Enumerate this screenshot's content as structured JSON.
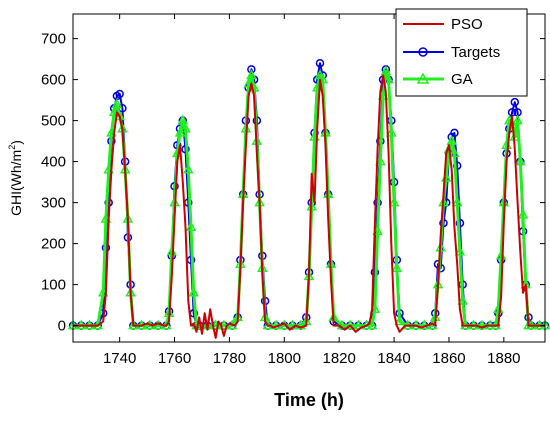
{
  "chart_data": {
    "type": "line",
    "xlabel": "Time (h)",
    "ylabel": "GHI(Wh/m",
    "ylabel_sup": "2",
    "ylabel_close": ")",
    "xlim": [
      1723,
      1895
    ],
    "ylim": [
      -40,
      760
    ],
    "xticks": [
      1740,
      1760,
      1780,
      1800,
      1820,
      1840,
      1860,
      1880
    ],
    "yticks": [
      0,
      100,
      200,
      300,
      400,
      500,
      600,
      700
    ],
    "grid": false,
    "legend_position": "top-right",
    "series": [
      {
        "name": "PSO",
        "color": "#cc0000",
        "marker": "none",
        "x": [
          1723,
          1730,
          1732,
          1734,
          1735,
          1736,
          1737,
          1738,
          1739,
          1740,
          1741,
          1742,
          1743,
          1744,
          1745,
          1746,
          1748,
          1750,
          1752,
          1754,
          1756,
          1757,
          1758,
          1759,
          1760,
          1761,
          1762,
          1763,
          1764,
          1765,
          1766,
          1767,
          1768,
          1769,
          1770,
          1771,
          1772,
          1773,
          1774,
          1775,
          1776,
          1777,
          1778,
          1779,
          1780,
          1782,
          1783,
          1784,
          1785,
          1786,
          1787,
          1788,
          1789,
          1790,
          1791,
          1792,
          1793,
          1794,
          1795,
          1796,
          1798,
          1800,
          1802,
          1804,
          1806,
          1808,
          1809,
          1810,
          1811,
          1812,
          1813,
          1814,
          1815,
          1816,
          1817,
          1818,
          1820,
          1822,
          1824,
          1826,
          1828,
          1830,
          1831,
          1832,
          1833,
          1834,
          1835,
          1836,
          1837,
          1838,
          1839,
          1840,
          1841,
          1842,
          1844,
          1846,
          1848,
          1850,
          1852,
          1854,
          1855,
          1856,
          1857,
          1858,
          1859,
          1860,
          1861,
          1862,
          1863,
          1864,
          1865,
          1866,
          1868,
          1870,
          1872,
          1874,
          1876,
          1878,
          1879,
          1880,
          1881,
          1882,
          1883,
          1884,
          1885,
          1886,
          1887,
          1888,
          1889,
          1890,
          1892,
          1895
        ],
        "y": [
          0,
          0,
          0,
          10,
          80,
          260,
          380,
          470,
          520,
          510,
          480,
          380,
          260,
          80,
          0,
          0,
          0,
          5,
          0,
          5,
          0,
          0,
          10,
          120,
          260,
          400,
          440,
          350,
          240,
          60,
          0,
          5,
          -15,
          20,
          -20,
          30,
          -10,
          40,
          0,
          -30,
          10,
          0,
          -25,
          0,
          5,
          0,
          10,
          140,
          300,
          440,
          560,
          590,
          560,
          420,
          300,
          130,
          10,
          0,
          0,
          -5,
          0,
          5,
          -10,
          0,
          -5,
          0,
          130,
          370,
          300,
          480,
          600,
          560,
          440,
          260,
          110,
          0,
          0,
          -10,
          0,
          -15,
          -5,
          0,
          5,
          40,
          250,
          430,
          570,
          610,
          570,
          420,
          200,
          30,
          0,
          -15,
          0,
          0,
          0,
          -5,
          0,
          5,
          0,
          100,
          220,
          320,
          420,
          440,
          380,
          240,
          150,
          40,
          0,
          0,
          0,
          0,
          -5,
          0,
          0,
          0,
          70,
          250,
          400,
          470,
          510,
          430,
          300,
          180,
          80,
          100,
          0,
          0,
          0,
          0
        ]
      },
      {
        "name": "Targets",
        "color": "#0000dd",
        "marker": "circle",
        "x": [
          1723,
          1726,
          1729,
          1732,
          1734,
          1735,
          1736,
          1737,
          1738,
          1739,
          1740,
          1741,
          1742,
          1743,
          1744,
          1745,
          1748,
          1751,
          1754,
          1757,
          1758,
          1759,
          1760,
          1761,
          1762,
          1763,
          1764,
          1765,
          1766,
          1767,
          1768,
          1769,
          1772,
          1775,
          1778,
          1781,
          1783,
          1784,
          1785,
          1786,
          1787,
          1788,
          1789,
          1790,
          1791,
          1792,
          1793,
          1794,
          1797,
          1800,
          1803,
          1806,
          1808,
          1809,
          1810,
          1811,
          1812,
          1813,
          1814,
          1815,
          1816,
          1817,
          1818,
          1821,
          1824,
          1827,
          1830,
          1832,
          1833,
          1834,
          1835,
          1836,
          1837,
          1838,
          1839,
          1840,
          1841,
          1842,
          1845,
          1848,
          1851,
          1854,
          1855,
          1856,
          1857,
          1858,
          1859,
          1860,
          1861,
          1862,
          1863,
          1864,
          1865,
          1866,
          1869,
          1872,
          1875,
          1877,
          1878,
          1879,
          1880,
          1881,
          1882,
          1883,
          1884,
          1885,
          1886,
          1887,
          1888,
          1889,
          1890,
          1893,
          1895
        ],
        "y": [
          0,
          0,
          0,
          0,
          30,
          190,
          300,
          450,
          530,
          560,
          565,
          530,
          400,
          215,
          100,
          0,
          0,
          0,
          0,
          0,
          35,
          170,
          340,
          440,
          480,
          500,
          430,
          300,
          160,
          30,
          0,
          0,
          0,
          0,
          0,
          0,
          20,
          160,
          320,
          500,
          580,
          625,
          600,
          500,
          320,
          170,
          60,
          0,
          0,
          0,
          0,
          0,
          20,
          130,
          300,
          470,
          600,
          640,
          610,
          470,
          320,
          150,
          10,
          0,
          0,
          0,
          0,
          0,
          130,
          300,
          450,
          600,
          625,
          600,
          500,
          350,
          160,
          30,
          0,
          0,
          0,
          0,
          30,
          150,
          140,
          250,
          300,
          420,
          460,
          470,
          390,
          250,
          100,
          0,
          0,
          0,
          0,
          0,
          30,
          160,
          300,
          420,
          480,
          520,
          545,
          520,
          400,
          230,
          100,
          20,
          0,
          0,
          0
        ]
      },
      {
        "name": "GA",
        "color": "#22ee22",
        "marker": "triangle",
        "x": [
          1723,
          1726,
          1729,
          1732,
          1734,
          1735,
          1736,
          1737,
          1738,
          1739,
          1740,
          1741,
          1742,
          1743,
          1744,
          1745,
          1748,
          1751,
          1754,
          1757,
          1758,
          1759,
          1760,
          1761,
          1762,
          1763,
          1764,
          1765,
          1766,
          1767,
          1768,
          1769,
          1772,
          1775,
          1778,
          1781,
          1783,
          1784,
          1785,
          1786,
          1787,
          1788,
          1789,
          1790,
          1791,
          1792,
          1793,
          1794,
          1797,
          1800,
          1803,
          1806,
          1808,
          1809,
          1810,
          1811,
          1812,
          1813,
          1814,
          1815,
          1816,
          1817,
          1818,
          1821,
          1824,
          1827,
          1830,
          1832,
          1833,
          1834,
          1835,
          1836,
          1837,
          1838,
          1839,
          1840,
          1841,
          1842,
          1845,
          1848,
          1851,
          1854,
          1855,
          1856,
          1857,
          1858,
          1859,
          1860,
          1861,
          1862,
          1863,
          1864,
          1865,
          1866,
          1869,
          1872,
          1875,
          1877,
          1878,
          1879,
          1880,
          1881,
          1882,
          1883,
          1884,
          1885,
          1886,
          1887,
          1888,
          1889,
          1890,
          1893,
          1895
        ],
        "y": [
          0,
          0,
          0,
          0,
          80,
          260,
          380,
          470,
          520,
          540,
          510,
          480,
          380,
          260,
          80,
          0,
          0,
          0,
          0,
          0,
          30,
          180,
          300,
          420,
          470,
          500,
          480,
          380,
          240,
          80,
          0,
          0,
          0,
          0,
          0,
          0,
          20,
          150,
          320,
          480,
          590,
          610,
          580,
          450,
          300,
          140,
          20,
          0,
          0,
          0,
          0,
          0,
          10,
          120,
          290,
          460,
          580,
          610,
          600,
          470,
          320,
          150,
          20,
          0,
          0,
          0,
          0,
          0,
          40,
          230,
          400,
          560,
          620,
          600,
          470,
          300,
          140,
          10,
          0,
          0,
          0,
          0,
          20,
          100,
          190,
          300,
          360,
          430,
          450,
          420,
          300,
          180,
          60,
          0,
          0,
          0,
          0,
          0,
          40,
          170,
          300,
          440,
          500,
          490,
          460,
          500,
          400,
          270,
          100,
          0,
          0,
          0,
          0
        ]
      }
    ]
  }
}
